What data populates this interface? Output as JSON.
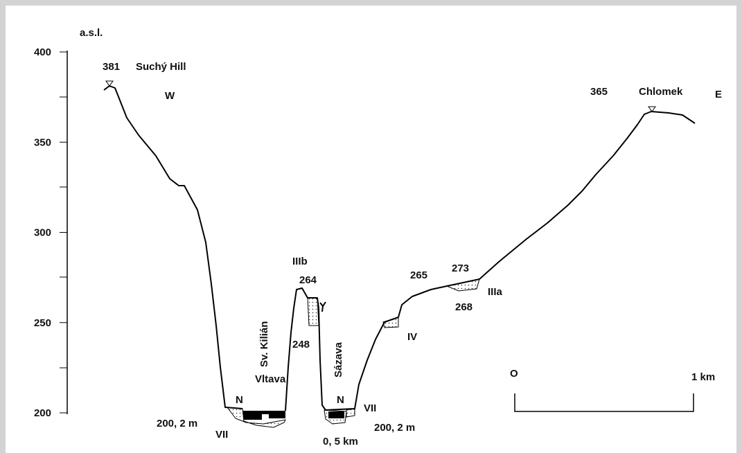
{
  "axis": {
    "label": "a.s.l.",
    "ticks": [
      400,
      350,
      300,
      250,
      200
    ]
  },
  "labels": [
    "381",
    "Suchý Hill",
    "W",
    "365",
    "Chlomek",
    "E",
    "IIIb",
    "264",
    "265",
    "273",
    "IIIa",
    "268",
    "IV",
    "248",
    "Vltava",
    "N",
    "N",
    "VII",
    "200, 2 m",
    "VII",
    "200, 2 m",
    "0, 5 km",
    "O",
    "1 km"
  ],
  "rotated_labels": [
    "Sv. Kilián",
    "Sázava"
  ]
}
